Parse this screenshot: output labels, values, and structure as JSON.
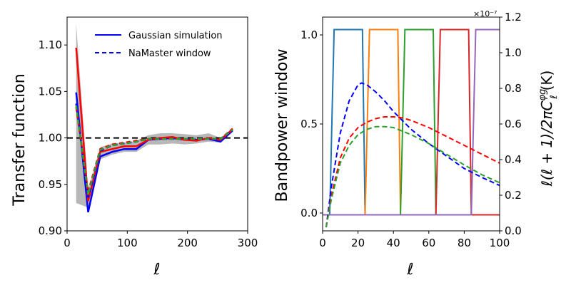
{
  "chart_data": [
    {
      "type": "line",
      "title": "",
      "xlabel": "ℓ",
      "ylabel": "Transfer function",
      "xlim": [
        0,
        300
      ],
      "ylim": [
        0.9,
        1.13
      ],
      "xticks": [
        "0",
        "100",
        "200",
        "300"
      ],
      "yticks": [
        "0.90",
        "0.95",
        "1.00",
        "1.05",
        "1.10"
      ],
      "xtick_values": [
        0,
        100,
        200,
        300
      ],
      "ytick_values": [
        0.9,
        0.95,
        1.0,
        1.05,
        1.1
      ],
      "legend": [
        "Gaussian simulation",
        "NaMaster window"
      ],
      "legend_placement": "top-right",
      "reference_line": 1.0,
      "x": [
        15,
        35,
        55,
        75,
        95,
        115,
        135,
        155,
        175,
        195,
        215,
        235,
        255,
        275
      ],
      "band": {
        "name": "simulation spread",
        "lower": [
          0.93,
          0.925,
          0.977,
          0.982,
          0.985,
          0.985,
          0.993,
          0.993,
          0.994,
          0.993,
          0.994,
          0.996,
          0.995,
          1.006
        ],
        "upper": [
          1.123,
          0.945,
          0.99,
          0.994,
          0.995,
          0.997,
          1.003,
          1.005,
          1.005,
          1.004,
          1.003,
          1.005,
          1.0,
          1.011
        ]
      },
      "series": [
        {
          "name": "Gaussian simulation",
          "color": "#0000ff",
          "style": "solid",
          "values": [
            1.049,
            0.92,
            0.98,
            0.985,
            0.988,
            0.988,
            0.998,
            0.999,
            1.0,
            0.998,
            0.998,
            0.999,
            0.996,
            1.008
          ]
        },
        {
          "name": "Gaussian simulation (red)",
          "color": "#ff0000",
          "style": "solid",
          "values": [
            1.097,
            0.932,
            0.985,
            0.988,
            0.991,
            0.991,
            0.998,
            1.0,
            1.001,
            0.998,
            0.997,
            1.0,
            0.998,
            1.009
          ]
        },
        {
          "name": "NaMaster window",
          "color": "#0000ff",
          "style": "dashed",
          "values": [
            1.037,
            0.936,
            0.986,
            0.992,
            0.994,
            0.996,
            0.999,
            0.999,
            0.999,
            0.999,
            0.999,
            0.999,
            0.999,
            1.009
          ]
        },
        {
          "name": "NaMaster window (red)",
          "color": "#ff0000",
          "style": "dashed",
          "values": [
            1.033,
            0.942,
            0.988,
            0.993,
            0.995,
            0.997,
            0.999,
            0.999,
            0.999,
            0.999,
            0.999,
            0.999,
            0.999,
            1.01
          ]
        },
        {
          "name": "NaMaster window (green)",
          "color": "#2ca02c",
          "style": "dashed",
          "values": [
            1.035,
            0.939,
            0.987,
            0.992,
            0.994,
            0.996,
            0.999,
            0.999,
            0.999,
            0.999,
            0.999,
            0.999,
            0.999,
            1.009
          ]
        }
      ]
    },
    {
      "type": "line",
      "title": "",
      "xlabel": "ℓ",
      "ylabel": "Bandpower window",
      "ylabel_right": "ℓ(ℓ + 1)/2πC",
      "ylabel_right_sup": "φg",
      "ylabel_right_sub": "ℓ",
      "ylabel_right_unit": "(K)",
      "right_axis_multiplier": "×10⁻⁷",
      "xlim": [
        0,
        100
      ],
      "ylim": [
        -0.1,
        1.1
      ],
      "ylim_right": [
        0,
        1.2
      ],
      "xticks": [
        "0",
        "20",
        "40",
        "60",
        "80",
        "100"
      ],
      "yticks": [
        "0.0",
        "0.5",
        "1.0"
      ],
      "yticks_right": [
        "0.0",
        "0.2",
        "0.4",
        "0.6",
        "0.8",
        "1.0",
        "1.2"
      ],
      "xtick_values": [
        0,
        20,
        40,
        60,
        80,
        100
      ],
      "ytick_values": [
        0.0,
        0.5,
        1.0
      ],
      "ytick_right_values": [
        0,
        0.2,
        0.4,
        0.6,
        0.8,
        1.0,
        1.2
      ],
      "windows": [
        {
          "name": "bin 1",
          "color": "#1f77b4",
          "start": 4,
          "end": 24
        },
        {
          "name": "bin 2",
          "color": "#ff7f0e",
          "start": 24,
          "end": 44
        },
        {
          "name": "bin 3",
          "color": "#2ca02c",
          "start": 44,
          "end": 64
        },
        {
          "name": "bin 4",
          "color": "#d62728",
          "start": 64,
          "end": 84
        },
        {
          "name": "bin 5",
          "color": "#9467bd",
          "start": 84,
          "end": 100
        }
      ],
      "window_plateau": 1.03,
      "window_floor": -0.01,
      "spectra": [
        {
          "name": "blue spectrum",
          "color": "#0000ff",
          "style": "dashed",
          "x": [
            2,
            5,
            10,
            15,
            20,
            22,
            25,
            30,
            35,
            40,
            45,
            50,
            55,
            60,
            70,
            80,
            90,
            100
          ],
          "values": [
            0.02,
            0.25,
            0.55,
            0.73,
            0.82,
            0.83,
            0.82,
            0.78,
            0.73,
            0.67,
            0.62,
            0.57,
            0.53,
            0.49,
            0.42,
            0.35,
            0.3,
            0.255
          ]
        },
        {
          "name": "red spectrum",
          "color": "#ff0000",
          "style": "dashed",
          "x": [
            2,
            5,
            10,
            15,
            20,
            25,
            30,
            35,
            40,
            45,
            50,
            60,
            70,
            80,
            90,
            100
          ],
          "values": [
            0.02,
            0.2,
            0.41,
            0.52,
            0.58,
            0.61,
            0.63,
            0.64,
            0.64,
            0.635,
            0.62,
            0.58,
            0.53,
            0.48,
            0.43,
            0.38
          ]
        },
        {
          "name": "green spectrum",
          "color": "#2ca02c",
          "style": "dashed",
          "x": [
            2,
            5,
            10,
            15,
            20,
            25,
            30,
            35,
            40,
            45,
            50,
            60,
            70,
            80,
            90,
            100
          ],
          "values": [
            0.02,
            0.18,
            0.38,
            0.48,
            0.54,
            0.57,
            0.585,
            0.585,
            0.58,
            0.56,
            0.54,
            0.49,
            0.43,
            0.37,
            0.315,
            0.27
          ]
        }
      ]
    }
  ]
}
